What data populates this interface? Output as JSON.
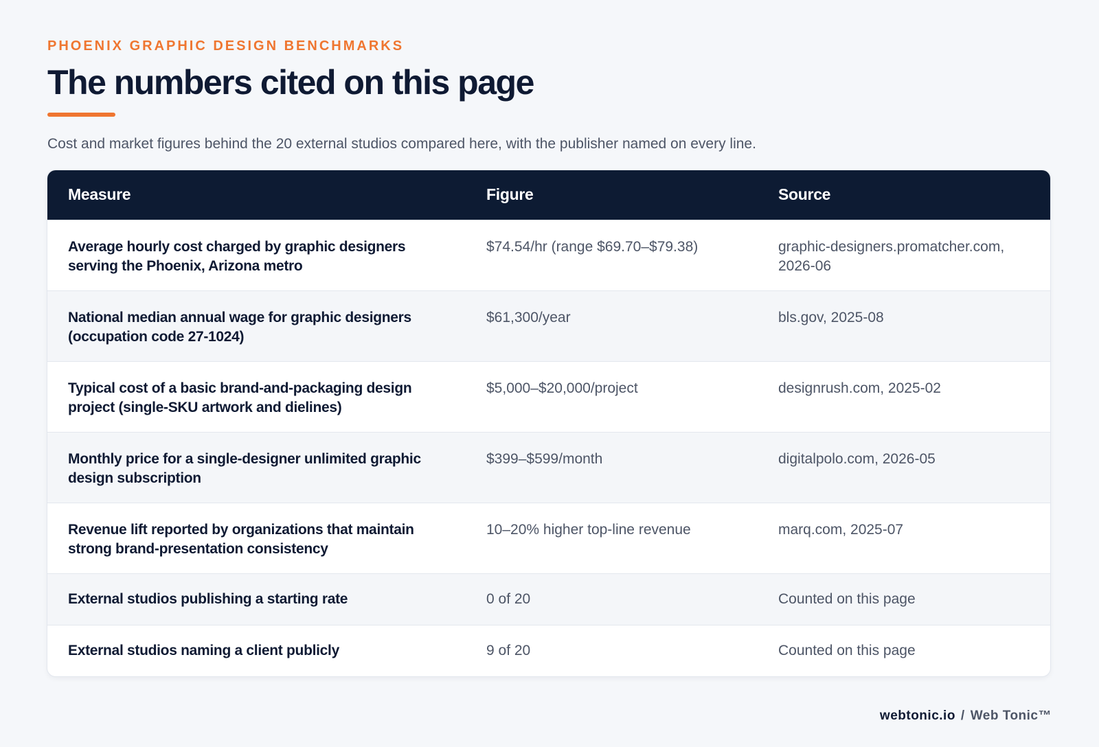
{
  "header": {
    "eyebrow": "PHOENIX GRAPHIC DESIGN BENCHMARKS",
    "title": "The numbers cited on this page",
    "subtitle": "Cost and market figures behind the 20 external studios compared here, with the publisher named on every line."
  },
  "table": {
    "columns": [
      "Measure",
      "Figure",
      "Source"
    ],
    "rows": [
      {
        "measure": "Average hourly cost charged by graphic designers serving the Phoenix, Arizona metro",
        "figure": "$74.54/hr (range $69.70–$79.38)",
        "source": "graphic-designers.promatcher.com, 2026-06"
      },
      {
        "measure": "National median annual wage for graphic designers (occupation code 27-1024)",
        "figure": "$61,300/year",
        "source": "bls.gov, 2025-08"
      },
      {
        "measure": "Typical cost of a basic brand-and-packaging design project (single-SKU artwork and dielines)",
        "figure": "$5,000–$20,000/project",
        "source": "designrush.com, 2025-02"
      },
      {
        "measure": "Monthly price for a single-designer unlimited graphic design subscription",
        "figure": "$399–$599/month",
        "source": "digitalpolo.com, 2026-05"
      },
      {
        "measure": "Revenue lift reported by organizations that maintain strong brand-presentation consistency",
        "figure": "10–20% higher top-line revenue",
        "source": "marq.com, 2025-07"
      },
      {
        "measure": "External studios publishing a starting rate",
        "figure": "0 of 20",
        "source": "Counted on this page"
      },
      {
        "measure": "External studios naming a client publicly",
        "figure": "9 of 20",
        "source": "Counted on this page"
      }
    ]
  },
  "footer": {
    "domain": "webtonic.io",
    "separator": "/",
    "brand": "Web Tonic™"
  },
  "colors": {
    "accent": "#ef7630",
    "header_bg": "#0d1b33",
    "page_bg": "#f5f7fa"
  }
}
